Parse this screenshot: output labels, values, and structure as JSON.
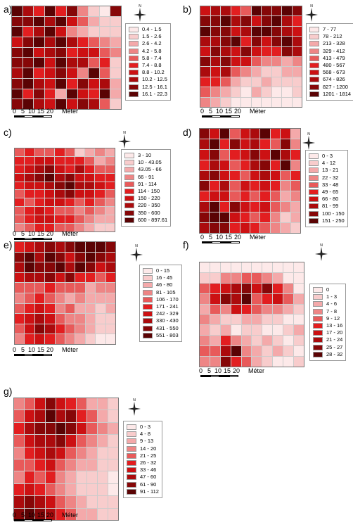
{
  "scale_ticks": [
    "0",
    "5",
    "10",
    "15",
    "20"
  ],
  "scale_unit": "Méter",
  "north_label": "N",
  "panels": [
    {
      "label": "a)",
      "legend": [
        "0.4 - 1.5",
        "1.5 - 2.6",
        "2.6 - 4.2",
        "4.2 - 5.8",
        "5.8 - 7.4",
        "7.4 - 8.8",
        "8.8 - 10.2",
        "10.2 - 12.5",
        "12.5 - 16.1",
        "16.1 - 22.3"
      ],
      "cells": [
        "9759583108",
        "8897964211",
        "9579632111",
        "6897975432",
        "8967856643",
        "8896977451",
        "7956863941",
        "8976958672",
        "9585296592",
        "8976968741"
      ]
    },
    {
      "label": "b)",
      "legend": [
        "7 - 77",
        "78 - 212",
        "213 - 328",
        "329 - 412",
        "413 - 479",
        "480 - 567",
        "568 - 673",
        "674 - 826",
        "827 - 1200",
        "1201 - 1814"
      ],
      "cells": [
        "6775498898",
        "8897868975",
        "9886799876",
        "7789586897",
        "6876865587",
        "8786643323",
        "7674321122",
        "5542112111",
        "4321021001",
        "3210000000"
      ]
    },
    {
      "label": "c)",
      "legend": [
        "3 - 10",
        "10 - 43.05",
        "43.05 - 66",
        "66 - 91",
        "91 - 114",
        "114 - 150",
        "150 - 220",
        "220 - 350",
        "350 - 600",
        "600 - 897.61"
      ],
      "cells": [
        "4544541232",
        "5566555423",
        "5678657544",
        "6789786655",
        "5667897765",
        "4556786654",
        "5456654543",
        "4565443432",
        "4566554322",
        "3455443211"
      ]
    },
    {
      "label": "d)",
      "legend": [
        "0 - 3",
        "4 - 12",
        "13 - 21",
        "22 - 32",
        "33 - 48",
        "49 - 65",
        "66 - 80",
        "81 - 99",
        "100 - 150",
        "151 - 250"
      ],
      "cells": [
        "8694679562",
        "7958675483",
        "6845686975",
        "5764578593",
        "7865467645",
        "8574656534",
        "5664545423",
        "7958656432",
        "8996545312",
        "7885654321"
      ]
    },
    {
      "label": "e)",
      "legend": [
        "0 - 15",
        "16 - 45",
        "46 - 80",
        "81 - 105",
        "106 - 170",
        "171 - 241",
        "242 - 329",
        "330 - 430",
        "431 - 550",
        "551 - 803"
      ],
      "cells": [
        "5678789998",
        "8979868987",
        "7988979867",
        "6778685545",
        "4445444233",
        "3454323222",
        "4565342212",
        "5676433211",
        "4687543211",
        "3565432100"
      ]
    },
    {
      "label": "f)",
      "legend": [
        "0",
        "1 - 3",
        "4 - 6",
        "7 - 8",
        "9 - 12",
        "13 - 16",
        "17 - 20",
        "21 - 24",
        "25 - 27",
        "28 - 32"
      ],
      "cells": [
        "0000000000",
        "1133443200",
        "4567868530",
        "3687945642",
        "2436543321",
        "3211221100",
        "2120110012",
        "3253212101",
        "4479321210",
        "3385421001"
      ]
    },
    {
      "label": "g)",
      "legend": [
        "0 - 3",
        "4 - 8",
        "9 - 13",
        "14 - 20",
        "21 - 25",
        "26 - 32",
        "33 - 46",
        "47 - 60",
        "61 - 90",
        "91 - 112"
      ],
      "cells": [
        "3468654221",
        "4679785421",
        "5788986432",
        "4677864321",
        "3567643211",
        "4456432211",
        "3545321110",
        "5654321110",
        "7876432111",
        "8987542211"
      ]
    }
  ],
  "palette": [
    "#fde9e9",
    "#f8cccc",
    "#f4a9aa",
    "#ee8585",
    "#e85a5a",
    "#e21e20",
    "#cc1113",
    "#ab0b0d",
    "#860708",
    "#5a0304"
  ]
}
